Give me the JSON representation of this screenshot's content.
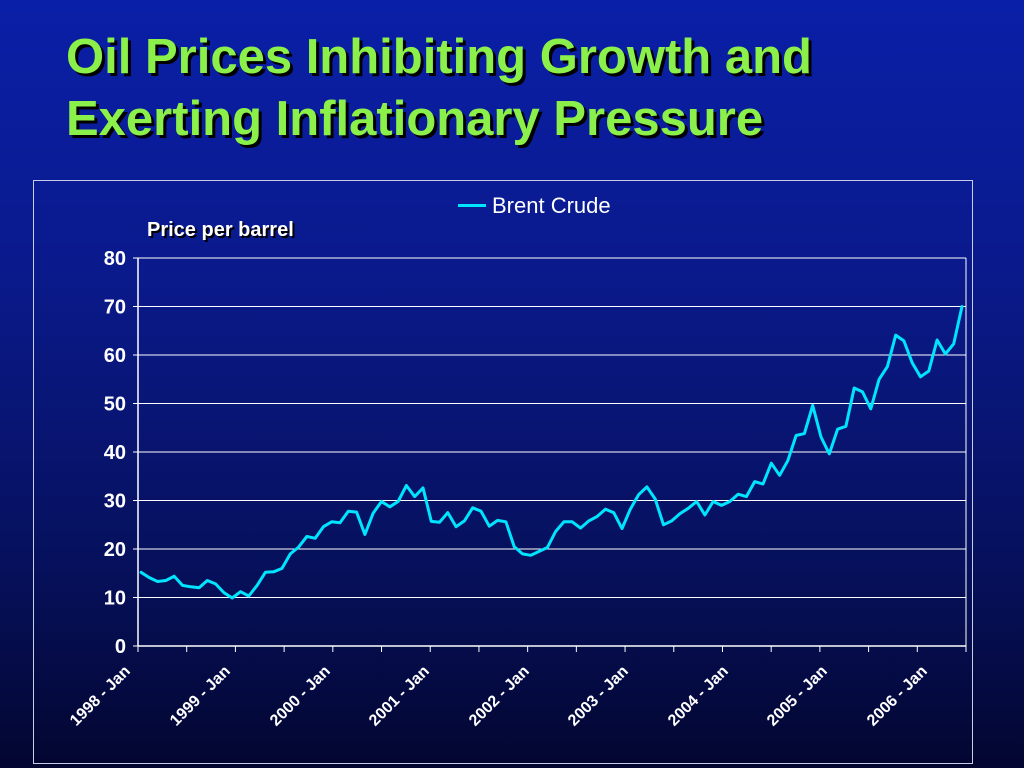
{
  "slide": {
    "title_line1": "Oil Prices Inhibiting Growth and",
    "title_line2": "Exerting Inflationary Pressure"
  },
  "chart_data": {
    "type": "line",
    "ylabel": "Price per barrel",
    "xlabel": "",
    "ylim": [
      0,
      80
    ],
    "yticks": [
      0,
      10,
      20,
      30,
      40,
      50,
      60,
      70,
      80
    ],
    "grid": true,
    "legend_position": "top",
    "x_tick_labels": [
      "1998 - Jan",
      "1999 - Jan",
      "2000 - Jan",
      "2001 - Jan",
      "2002 - Jan",
      "2003 - Jan",
      "2004 - Jan",
      "2005 - Jan",
      "2006 - Jan"
    ],
    "series": [
      {
        "name": "Brent Crude",
        "color": "#00e5ff",
        "start": "1998-01",
        "frequency": "monthly",
        "values": [
          15.2,
          14.1,
          13.3,
          13.5,
          14.4,
          12.5,
          12.2,
          12.0,
          13.5,
          12.8,
          11.0,
          9.9,
          11.2,
          10.3,
          12.5,
          15.2,
          15.3,
          16.0,
          19.0,
          20.4,
          22.6,
          22.2,
          24.6,
          25.6,
          25.4,
          27.8,
          27.6,
          23.0,
          27.4,
          29.8,
          28.7,
          29.8,
          33.1,
          30.8,
          32.6,
          25.7,
          25.5,
          27.5,
          24.6,
          25.8,
          28.5,
          27.8,
          24.7,
          25.9,
          25.6,
          20.5,
          19.0,
          18.7,
          19.5,
          20.3,
          23.6,
          25.6,
          25.6,
          24.3,
          25.8,
          26.7,
          28.2,
          27.5,
          24.2,
          28.2,
          31.2,
          32.8,
          30.3,
          25.0,
          25.8,
          27.3,
          28.4,
          29.8,
          27.0,
          29.8,
          29.0,
          29.8,
          31.3,
          30.8,
          33.9,
          33.4,
          37.7,
          35.2,
          38.2,
          43.4,
          43.8,
          49.6,
          43.1,
          39.6,
          44.7,
          45.3,
          53.2,
          52.4,
          48.9,
          55.0,
          57.6,
          64.1,
          62.9,
          58.4,
          55.5,
          56.7,
          63.1,
          60.2,
          62.3,
          70.0
        ]
      }
    ]
  }
}
